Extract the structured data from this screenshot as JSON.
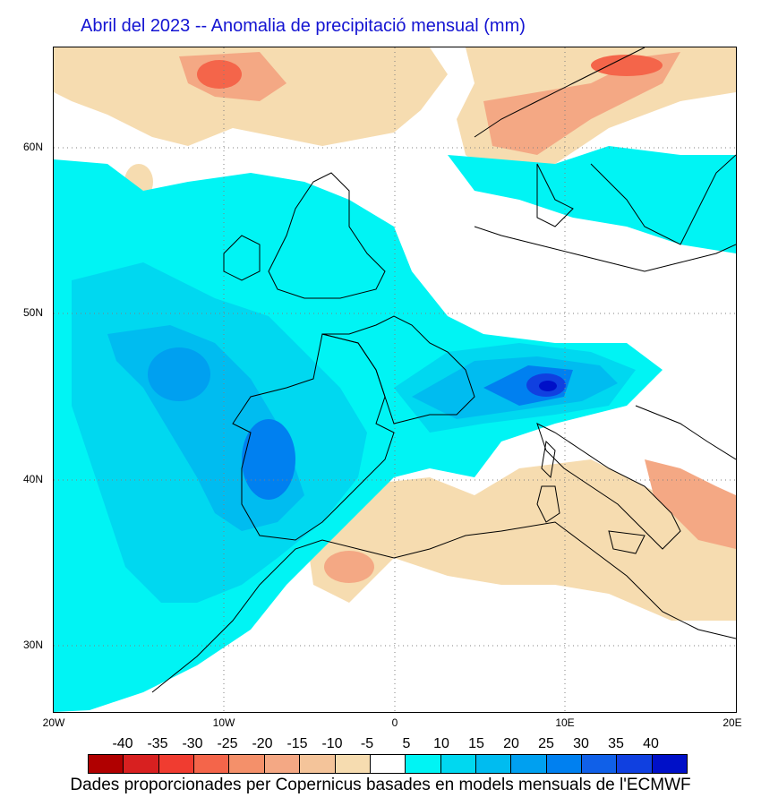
{
  "title": "Abril del 2023 -- Anomalia de precipitació mensual (mm)",
  "map": {
    "lat_labels": [
      "60N",
      "50N",
      "40N",
      "30N"
    ],
    "lon_labels": [
      "20W",
      "10W",
      "0",
      "10E",
      "20E"
    ],
    "lat_range": [
      26,
      66
    ],
    "lon_range": [
      -20,
      20
    ]
  },
  "legend": {
    "labels": [
      "-40",
      "-35",
      "-30",
      "-25",
      "-20",
      "-15",
      "-10",
      "-5",
      "5",
      "10",
      "15",
      "20",
      "25",
      "30",
      "35",
      "40"
    ],
    "colors": [
      "#b00000",
      "#d82020",
      "#f03c30",
      "#f4654a",
      "#f4906a",
      "#f4a884",
      "#f4c49a",
      "#f6dcb0",
      "#ffffff",
      "#00f4f4",
      "#00d8f0",
      "#00bcf0",
      "#00a0f0",
      "#0080f0",
      "#1060e8",
      "#1040e0",
      "#0010c8"
    ]
  },
  "credit": "Dades proporcionades per Copernicus basades en models mensuals de l'ECMWF"
}
